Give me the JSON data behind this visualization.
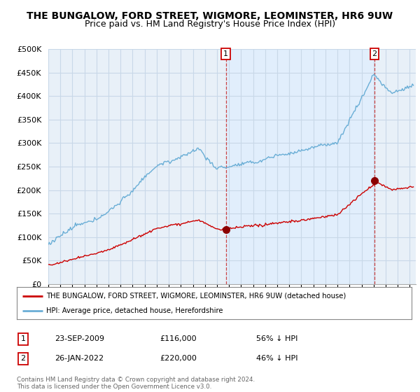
{
  "title": "THE BUNGALOW, FORD STREET, WIGMORE, LEOMINSTER, HR6 9UW",
  "subtitle": "Price paid vs. HM Land Registry's House Price Index (HPI)",
  "ylabel_ticks": [
    "£0",
    "£50K",
    "£100K",
    "£150K",
    "£200K",
    "£250K",
    "£300K",
    "£350K",
    "£400K",
    "£450K",
    "£500K"
  ],
  "ylim": [
    0,
    500000
  ],
  "xlim_start": 1995.0,
  "xlim_end": 2025.5,
  "sale1_date": 2009.73,
  "sale1_price": 116000,
  "sale1_label": "1",
  "sale2_date": 2022.07,
  "sale2_price": 220000,
  "sale2_label": "2",
  "legend_red_label": "THE BUNGALOW, FORD STREET, WIGMORE, LEOMINSTER, HR6 9UW (detached house)",
  "legend_blue_label": "HPI: Average price, detached house, Herefordshire",
  "table_row1": [
    "1",
    "23-SEP-2009",
    "£116,000",
    "56% ↓ HPI"
  ],
  "table_row2": [
    "2",
    "26-JAN-2022",
    "£220,000",
    "46% ↓ HPI"
  ],
  "footer": "Contains HM Land Registry data © Crown copyright and database right 2024.\nThis data is licensed under the Open Government Licence v3.0.",
  "hpi_color": "#6aaed6",
  "price_color": "#cc0000",
  "sale_marker_color": "#8b0000",
  "background_color": "#ffffff",
  "grid_color": "#c8d8e8",
  "shade_color": "#ddeeff",
  "title_fontsize": 10,
  "subtitle_fontsize": 9,
  "tick_fontsize": 8
}
